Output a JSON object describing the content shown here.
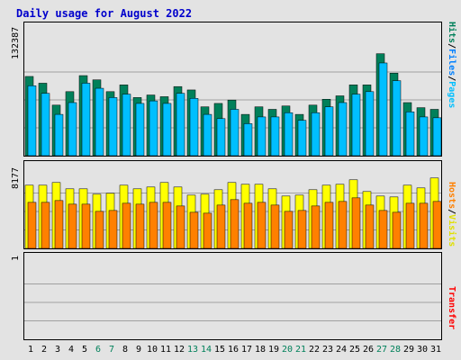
{
  "title": "Daily usage for August 2022",
  "colors": {
    "hits": "#00805a",
    "files": "#00bfff",
    "pages": "#00bfff",
    "visits": "#ffff00",
    "hosts": "#ff8000",
    "transfer": "#ff0000"
  },
  "legend": {
    "hits": "Hits",
    "files": "Files",
    "pages": "Pages",
    "visits": "Visits",
    "hosts": "Hosts",
    "transfer": "Transfer",
    "sep": "/"
  },
  "chart_data": [
    {
      "type": "bar",
      "categories": [
        "1",
        "2",
        "3",
        "4",
        "5",
        "6",
        "7",
        "8",
        "9",
        "10",
        "11",
        "12",
        "13",
        "14",
        "15",
        "16",
        "17",
        "18",
        "19",
        "20",
        "21",
        "22",
        "23",
        "24",
        "25",
        "26",
        "27",
        "28",
        "29",
        "30",
        "31"
      ],
      "weekend_days": [
        "6",
        "7",
        "13",
        "14",
        "20",
        "21",
        "27",
        "28"
      ],
      "ymax_label": "132387",
      "ymax": 132387,
      "series": [
        {
          "name": "Hits",
          "values": [
            94000,
            86000,
            60000,
            76000,
            95000,
            90000,
            76000,
            84000,
            69000,
            72000,
            70000,
            82000,
            78000,
            58000,
            62000,
            66000,
            49000,
            58000,
            55000,
            59000,
            49000,
            60000,
            67000,
            71000,
            84000,
            84000,
            121000,
            98000,
            63000,
            57000,
            55000
          ]
        },
        {
          "name": "Files",
          "values": [
            83000,
            74000,
            49000,
            63000,
            86000,
            80000,
            69000,
            73000,
            62000,
            65000,
            62000,
            74000,
            68000,
            49000,
            44000,
            55000,
            38000,
            46000,
            46000,
            51000,
            42000,
            51000,
            58000,
            63000,
            73000,
            76000,
            110000,
            89000,
            52000,
            46000,
            45000
          ]
        }
      ]
    },
    {
      "type": "bar",
      "categories": [
        "1",
        "2",
        "3",
        "4",
        "5",
        "6",
        "7",
        "8",
        "9",
        "10",
        "11",
        "12",
        "13",
        "14",
        "15",
        "16",
        "17",
        "18",
        "19",
        "20",
        "21",
        "22",
        "23",
        "24",
        "25",
        "26",
        "27",
        "28",
        "29",
        "30",
        "31"
      ],
      "ymax_label": "8177",
      "ymax": 8177,
      "series": [
        {
          "name": "Visits",
          "values": [
            7000,
            7000,
            7300,
            6600,
            6600,
            6000,
            6100,
            7000,
            6600,
            6800,
            7300,
            6800,
            5900,
            6000,
            6500,
            7300,
            7100,
            7100,
            6600,
            5800,
            5900,
            6500,
            7000,
            7100,
            7600,
            6300,
            5800,
            5700,
            7000,
            6700,
            7800
          ]
        },
        {
          "name": "Hosts",
          "values": [
            5100,
            5100,
            5300,
            4900,
            4900,
            4100,
            4200,
            5000,
            4900,
            5100,
            5100,
            4700,
            4000,
            3900,
            4800,
            5400,
            5000,
            5100,
            4800,
            4100,
            4200,
            4700,
            5100,
            5200,
            5600,
            4800,
            4200,
            4000,
            5000,
            5000,
            5200
          ]
        }
      ]
    },
    {
      "type": "bar",
      "categories": [
        "1",
        "2",
        "3",
        "4",
        "5",
        "6",
        "7",
        "8",
        "9",
        "10",
        "11",
        "12",
        "13",
        "14",
        "15",
        "16",
        "17",
        "18",
        "19",
        "20",
        "21",
        "22",
        "23",
        "24",
        "25",
        "26",
        "27",
        "28",
        "29",
        "30",
        "31"
      ],
      "ymax_label": "1",
      "ymax": 1,
      "series": [
        {
          "name": "Transfer",
          "values": [
            0,
            0,
            0,
            0,
            0,
            0,
            0,
            0,
            0,
            0,
            0,
            0,
            0,
            0,
            0,
            0,
            0,
            0,
            0,
            0,
            0,
            0,
            0,
            0,
            0,
            0,
            0,
            0,
            0,
            0,
            0
          ]
        }
      ]
    }
  ]
}
